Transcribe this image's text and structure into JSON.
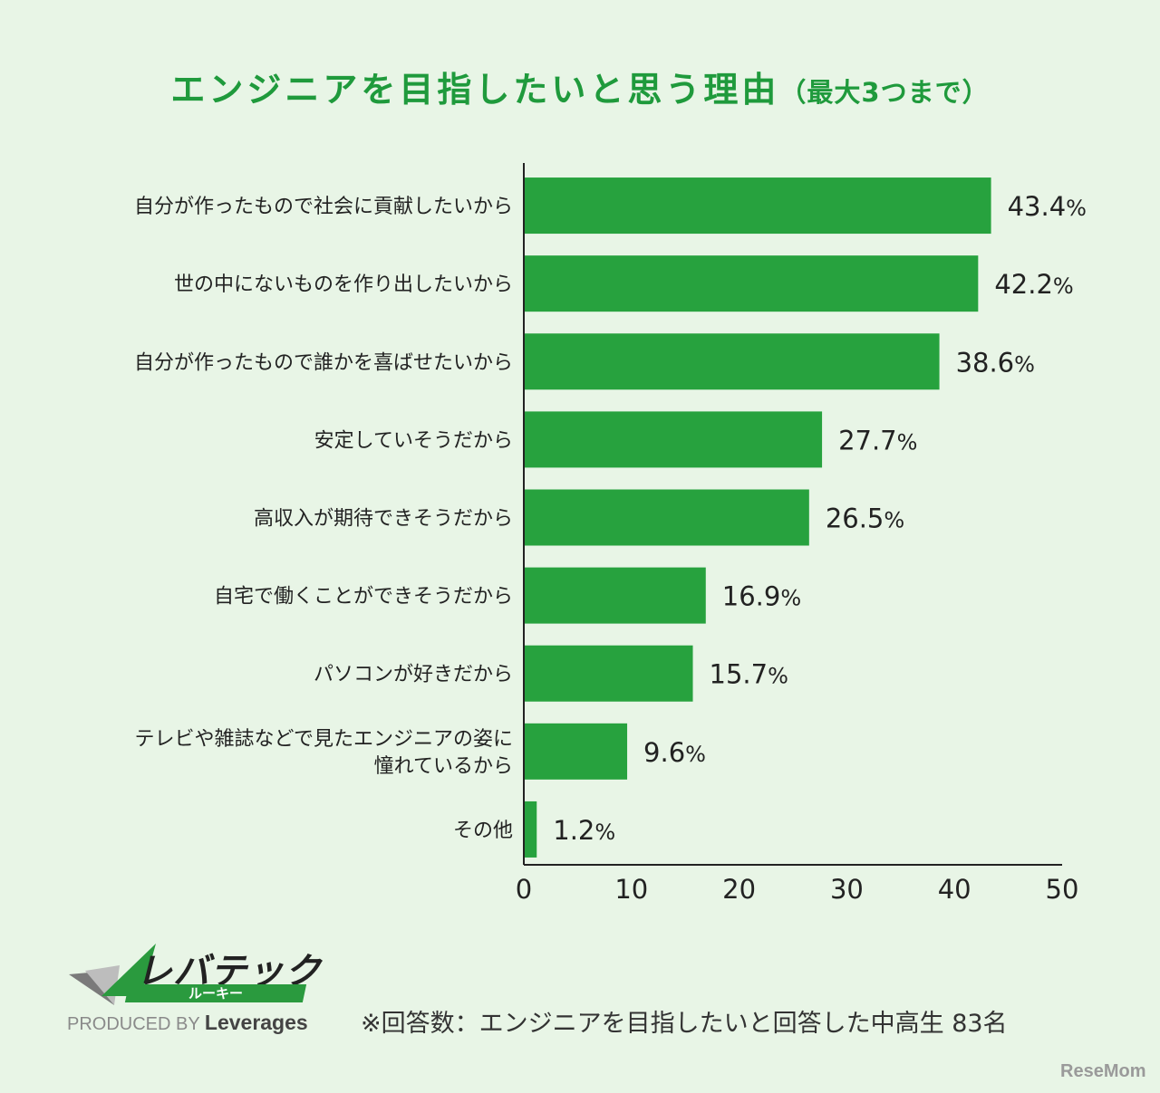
{
  "title": {
    "main": "エンジニアを目指したいと思う理由",
    "sub": "（最大3つまで）"
  },
  "colors": {
    "bar": "#27a23e",
    "title": "#1f9a3c",
    "background": "#e8f5e6"
  },
  "chart_data": {
    "type": "bar",
    "orientation": "horizontal",
    "categories": [
      "自分が作ったもので社会に貢献したいから",
      "世の中にないものを作り出したいから",
      "自分が作ったもので誰かを喜ばせたいから",
      "安定していそうだから",
      "高収入が期待できそうだから",
      "自宅で働くことができそうだから",
      "パソコンが好きだから",
      "テレビや雑誌などで見たエンジニアの姿に憧れているから",
      "その他"
    ],
    "category_lines": [
      [
        "自分が作ったもので社会に貢献したいから"
      ],
      [
        "世の中にないものを作り出したいから"
      ],
      [
        "自分が作ったもので誰かを喜ばせたいから"
      ],
      [
        "安定していそうだから"
      ],
      [
        "高収入が期待できそうだから"
      ],
      [
        "自宅で働くことができそうだから"
      ],
      [
        "パソコンが好きだから"
      ],
      [
        "テレビや雑誌などで見たエンジニアの姿に",
        "憧れているから"
      ],
      [
        "その他"
      ]
    ],
    "values": [
      43.4,
      42.2,
      38.6,
      27.7,
      26.5,
      16.9,
      15.7,
      9.6,
      1.2
    ],
    "value_labels": [
      "43.4",
      "42.2",
      "38.6",
      "27.7",
      "26.5",
      "16.9",
      "15.7",
      "9.6",
      "1.2"
    ],
    "unit": "%",
    "xlim": [
      0,
      50
    ],
    "xticks": [
      "0",
      "10",
      "20",
      "30",
      "40",
      "50"
    ],
    "grid": false
  },
  "branding": {
    "logo_main": "レバテック",
    "logo_sub": "ルーキー",
    "produced_by": "PRODUCED BY",
    "company": "Leverages"
  },
  "footnote": "※回答数：エンジニアを目指したいと回答した中高生 83名",
  "watermark": "ReseMom"
}
